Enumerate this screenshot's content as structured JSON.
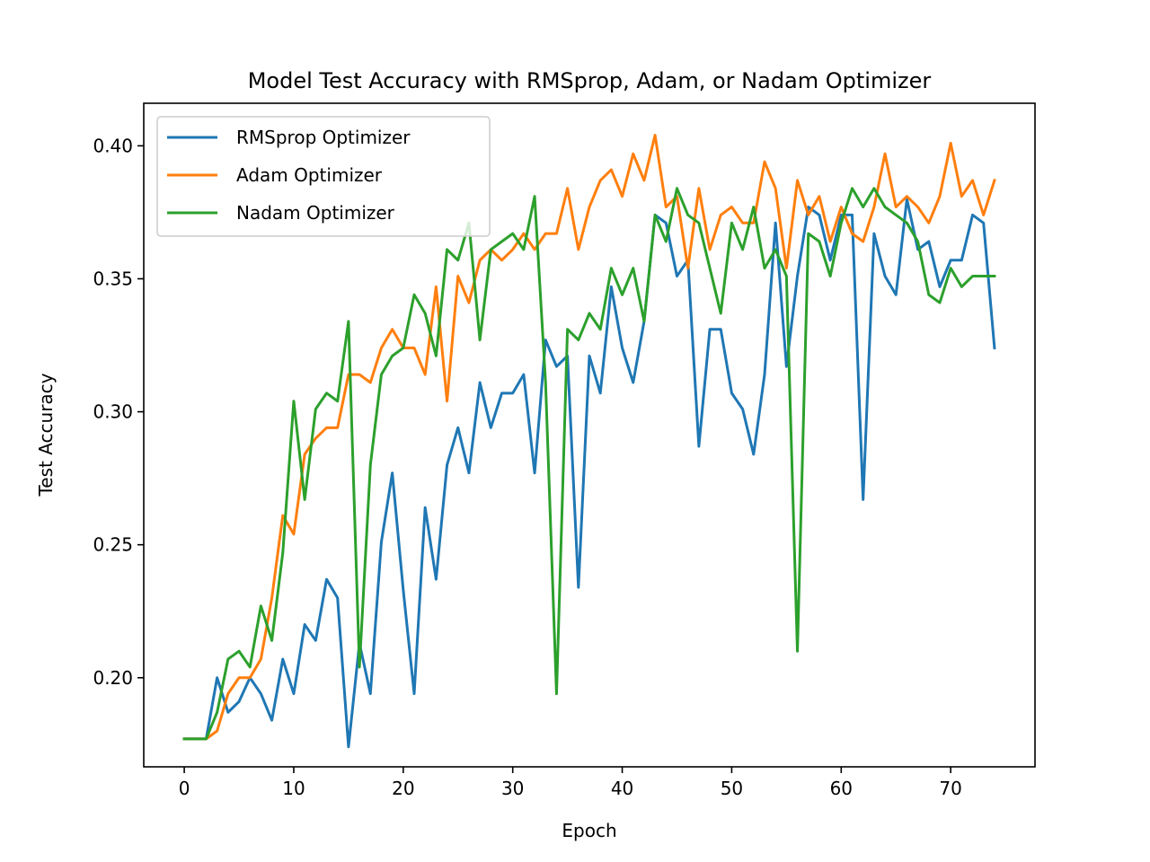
{
  "chart_data": {
    "type": "line",
    "title": "Model Test Accuracy with RMSprop, Adam, or Nadam Optimizer",
    "xlabel": "Epoch",
    "ylabel": "Test Accuracy",
    "xlim": [
      -3.7,
      77.7
    ],
    "ylim": [
      0.1665,
      0.416
    ],
    "xticks": [
      0,
      10,
      20,
      30,
      40,
      50,
      60,
      70
    ],
    "yticks": [
      0.2,
      0.25,
      0.3,
      0.35,
      0.4
    ],
    "ytick_labels": [
      "0.20",
      "0.25",
      "0.30",
      "0.35",
      "0.40"
    ],
    "grid": false,
    "legend_position": "top-left",
    "x": [
      0,
      1,
      2,
      3,
      4,
      5,
      6,
      7,
      8,
      9,
      10,
      11,
      12,
      13,
      14,
      15,
      16,
      17,
      18,
      19,
      20,
      21,
      22,
      23,
      24,
      25,
      26,
      27,
      28,
      29,
      30,
      31,
      32,
      33,
      34,
      35,
      36,
      37,
      38,
      39,
      40,
      41,
      42,
      43,
      44,
      45,
      46,
      47,
      48,
      49,
      50,
      51,
      52,
      53,
      54,
      55,
      56,
      57,
      58,
      59,
      60,
      61,
      62,
      63,
      64,
      65,
      66,
      67,
      68,
      69,
      70,
      71,
      72,
      73,
      74
    ],
    "series": [
      {
        "name": "RMSprop Optimizer",
        "color": "#1f77b4",
        "values": [
          0.177,
          0.177,
          0.177,
          0.2,
          0.187,
          0.191,
          0.2,
          0.194,
          0.184,
          0.207,
          0.194,
          0.22,
          0.214,
          0.237,
          0.23,
          0.174,
          0.213,
          0.194,
          0.251,
          0.277,
          0.233,
          0.194,
          0.264,
          0.237,
          0.28,
          0.294,
          0.277,
          0.311,
          0.294,
          0.307,
          0.307,
          0.314,
          0.277,
          0.327,
          0.317,
          0.321,
          0.234,
          0.321,
          0.307,
          0.347,
          0.324,
          0.311,
          0.334,
          0.374,
          0.371,
          0.351,
          0.357,
          0.287,
          0.331,
          0.331,
          0.307,
          0.301,
          0.284,
          0.314,
          0.371,
          0.317,
          0.351,
          0.377,
          0.374,
          0.357,
          0.374,
          0.374,
          0.267,
          0.367,
          0.351,
          0.344,
          0.38,
          0.361,
          0.364,
          0.347,
          0.357,
          0.357,
          0.374,
          0.371,
          0.324
        ]
      },
      {
        "name": "Adam Optimizer",
        "color": "#ff7f0e",
        "values": [
          0.177,
          0.177,
          0.177,
          0.18,
          0.194,
          0.2,
          0.2,
          0.207,
          0.23,
          0.261,
          0.254,
          0.284,
          0.29,
          0.294,
          0.294,
          0.314,
          0.314,
          0.311,
          0.324,
          0.331,
          0.324,
          0.324,
          0.314,
          0.347,
          0.304,
          0.351,
          0.341,
          0.357,
          0.361,
          0.357,
          0.361,
          0.367,
          0.361,
          0.367,
          0.367,
          0.384,
          0.361,
          0.377,
          0.387,
          0.391,
          0.381,
          0.397,
          0.387,
          0.404,
          0.377,
          0.381,
          0.354,
          0.384,
          0.361,
          0.374,
          0.377,
          0.371,
          0.371,
          0.394,
          0.384,
          0.354,
          0.387,
          0.374,
          0.381,
          0.364,
          0.377,
          0.367,
          0.364,
          0.377,
          0.397,
          0.377,
          0.381,
          0.377,
          0.371,
          0.381,
          0.401,
          0.381,
          0.387,
          0.374,
          0.387
        ]
      },
      {
        "name": "Nadam Optimizer",
        "color": "#2ca02c",
        "values": [
          0.177,
          0.177,
          0.177,
          0.187,
          0.207,
          0.21,
          0.204,
          0.227,
          0.214,
          0.247,
          0.304,
          0.267,
          0.301,
          0.307,
          0.304,
          0.334,
          0.204,
          0.28,
          0.314,
          0.321,
          0.324,
          0.344,
          0.337,
          0.321,
          0.361,
          0.357,
          0.371,
          0.327,
          0.361,
          0.364,
          0.367,
          0.361,
          0.381,
          0.311,
          0.194,
          0.331,
          0.327,
          0.337,
          0.331,
          0.354,
          0.344,
          0.354,
          0.334,
          0.374,
          0.364,
          0.384,
          0.374,
          0.371,
          0.354,
          0.337,
          0.371,
          0.361,
          0.377,
          0.354,
          0.361,
          0.351,
          0.21,
          0.367,
          0.364,
          0.351,
          0.371,
          0.384,
          0.377,
          0.384,
          0.377,
          0.374,
          0.371,
          0.364,
          0.344,
          0.341,
          0.354,
          0.347,
          0.351,
          0.351,
          0.351
        ]
      }
    ]
  }
}
